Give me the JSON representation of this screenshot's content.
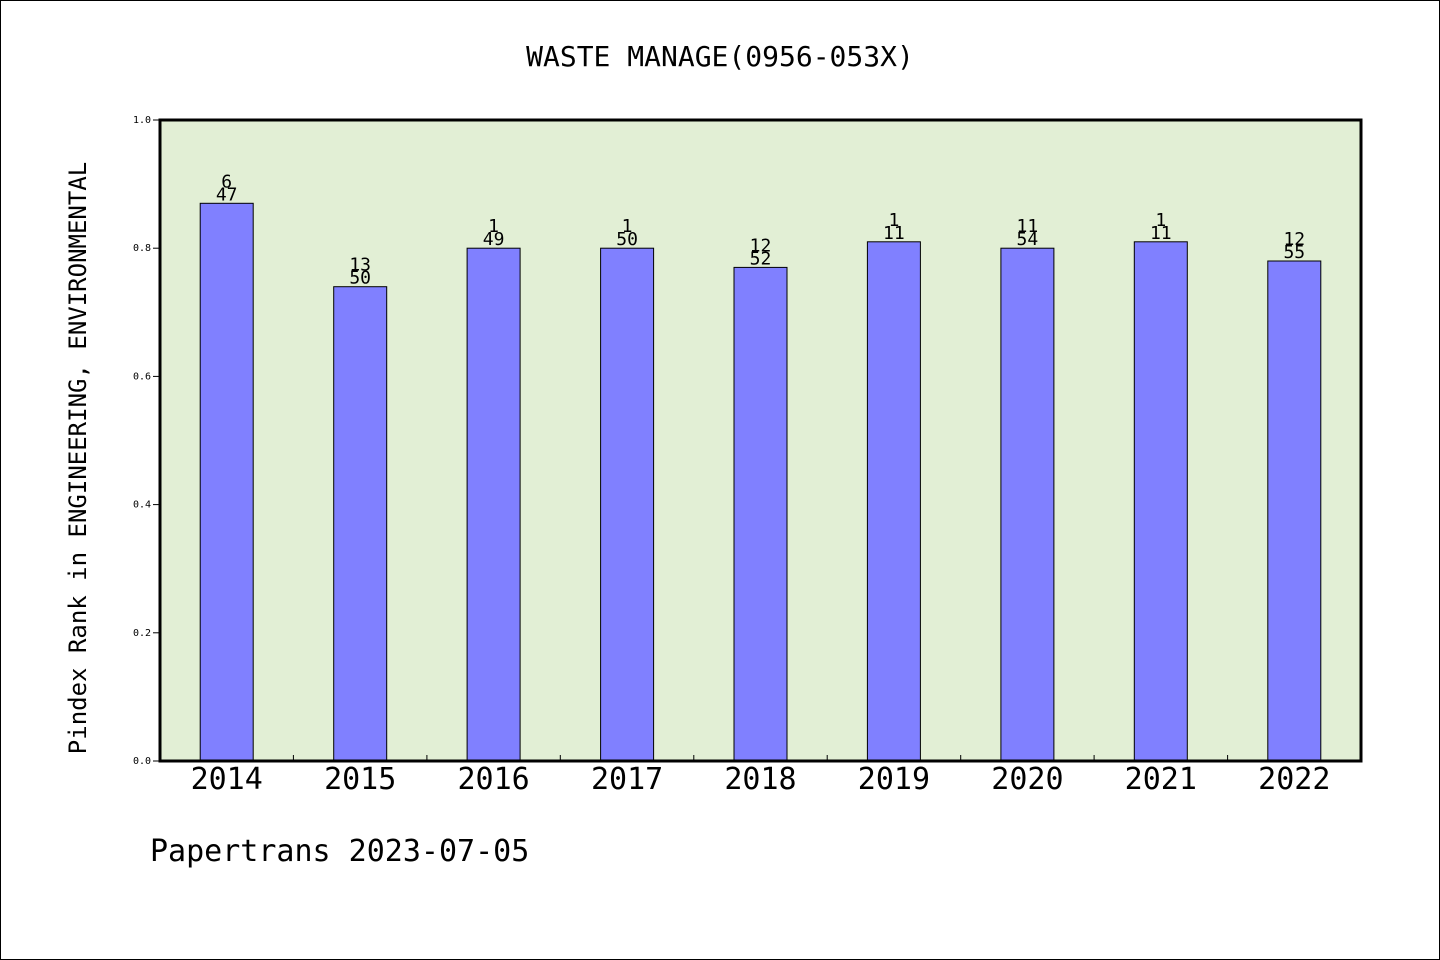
{
  "chart_data": {
    "type": "bar",
    "title": "WASTE MANAGE(0956-053X)",
    "xlabel": "",
    "ylabel": "Pindex Rank in ENGINEERING, ENVIRONMENTAL",
    "ylim": [
      0.0,
      1.0
    ],
    "yticks": [
      0.0,
      0.2,
      0.4,
      0.6,
      0.8,
      1.0
    ],
    "ytick_labels": [
      "0.0",
      "0.2",
      "0.4",
      "0.6",
      "0.8",
      "1.0"
    ],
    "categories": [
      "2014",
      "2015",
      "2016",
      "2017",
      "2018",
      "2019",
      "2020",
      "2021",
      "2022"
    ],
    "values": [
      0.87,
      0.74,
      0.8,
      0.8,
      0.77,
      0.81,
      0.8,
      0.81,
      0.78
    ],
    "rank_labels": [
      "6",
      "13",
      "1",
      "1",
      "12",
      "1",
      "11",
      "1",
      "12"
    ],
    "total_labels": [
      "47",
      "50",
      "49",
      "50",
      "52",
      "11",
      "54",
      "11",
      "55"
    ],
    "grid": false,
    "legend": "none",
    "colors": {
      "bar_fill": "#8080ff",
      "bar_stroke": "#000000",
      "plot_background": "#e2efd5",
      "axes": "#000000"
    }
  },
  "footer": {
    "text": "Papertrans 2023-07-05"
  }
}
